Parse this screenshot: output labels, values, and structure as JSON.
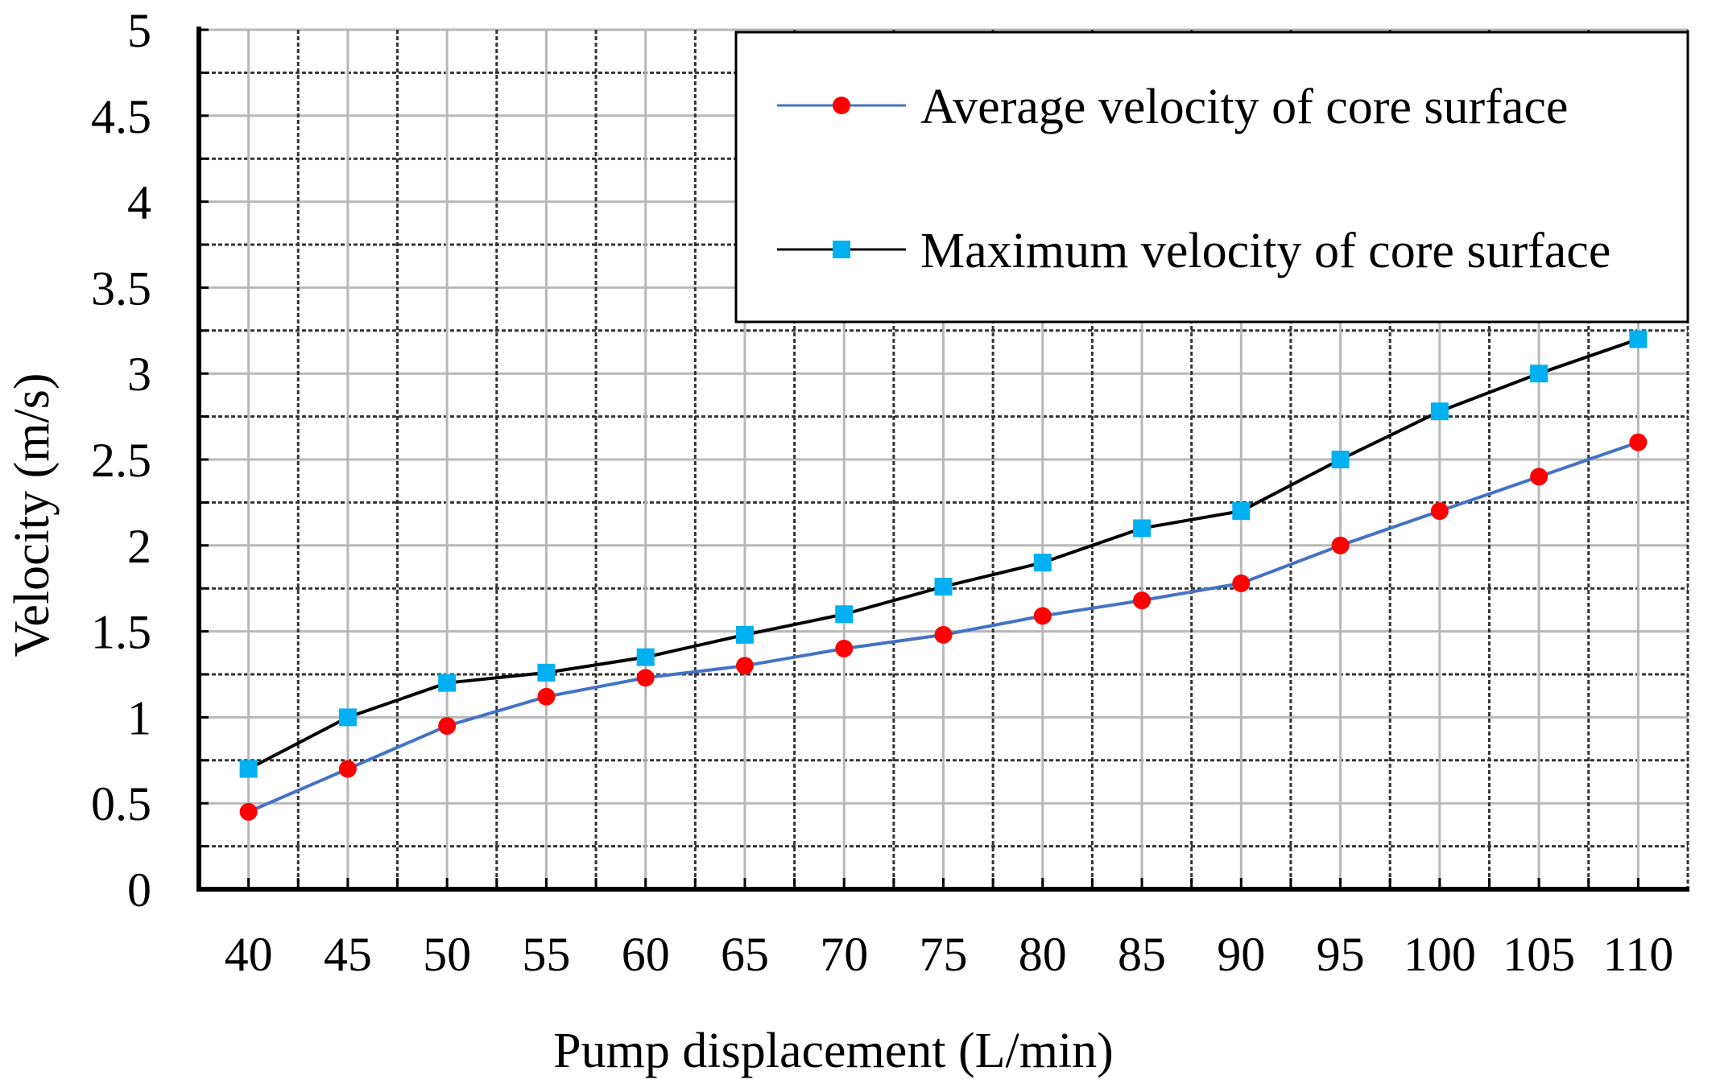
{
  "chart_data": {
    "type": "line",
    "title": "",
    "xlabel": "Pump displacement (L/min)",
    "ylabel": "Velocity (m/s)",
    "categories": [
      "40",
      "45",
      "50",
      "55",
      "60",
      "65",
      "70",
      "75",
      "80",
      "85",
      "90",
      "95",
      "100",
      "105",
      "110"
    ],
    "x": [
      40,
      45,
      50,
      55,
      60,
      65,
      70,
      75,
      80,
      85,
      90,
      95,
      100,
      105,
      110
    ],
    "ylim": [
      0,
      5
    ],
    "yticks": [
      "0",
      "0.5",
      "1",
      "1.5",
      "2",
      "2.5",
      "3",
      "3.5",
      "4",
      "4.5",
      "5"
    ],
    "grid": true,
    "legend_position": "top-right",
    "series": [
      {
        "name": "Average velocity of core surface",
        "line_color": "#4472c4",
        "marker_color": "#ff0000",
        "marker": "circle",
        "values": [
          0.45,
          0.7,
          0.95,
          1.12,
          1.23,
          1.3,
          1.4,
          1.48,
          1.59,
          1.68,
          1.78,
          2.0,
          2.2,
          2.4,
          2.6
        ]
      },
      {
        "name": "Maximum velocity of core surface",
        "line_color": "#000000",
        "marker_color": "#00b0f0",
        "marker": "square",
        "values": [
          0.7,
          1.0,
          1.2,
          1.26,
          1.35,
          1.48,
          1.6,
          1.76,
          1.9,
          2.1,
          2.2,
          2.5,
          2.78,
          3.0,
          3.2
        ]
      }
    ]
  }
}
